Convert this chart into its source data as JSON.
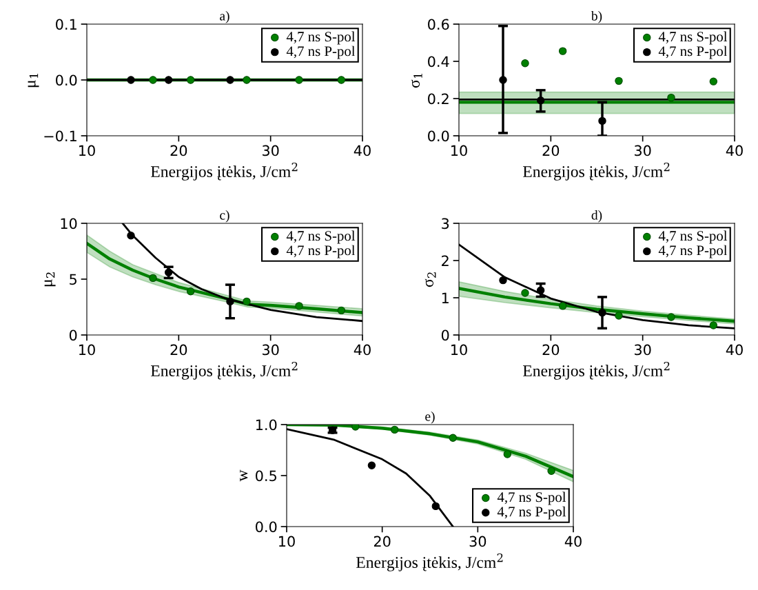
{
  "chart_data": [
    {
      "type": "scatter",
      "title": "a)",
      "xlabel": "Energijos įtėkis, J/cm$^{2}$",
      "ylabel": "μ$_{1}$",
      "xlim": [
        10,
        40
      ],
      "xticks": [
        10,
        20,
        30,
        40
      ],
      "ylim": [
        -0.1,
        0.1
      ],
      "yticks": [
        {
          "value": -0.1,
          "label": "−0.1"
        },
        {
          "value": 0,
          "label": "0.0"
        },
        {
          "value": 0.1,
          "label": "0.1"
        }
      ],
      "legend": "top right",
      "grid": false,
      "marker": "circle",
      "series": [
        {
          "type": "line",
          "marker": "none",
          "color": "#008000",
          "x": [
            10,
            40
          ],
          "values": [
            0,
            0
          ]
        },
        {
          "type": "line",
          "marker": "none",
          "color": "#000000",
          "x": [
            10,
            40
          ],
          "values": [
            0,
            0
          ]
        },
        {
          "name": "4,7 ns S-pol",
          "color": "#008000",
          "x": [
            17.2,
            21.3,
            27.4,
            33.1,
            37.7
          ],
          "values": [
            0,
            0,
            0,
            0,
            0
          ]
        },
        {
          "name": "4,7 ns P-pol",
          "color": "#000000",
          "x": [
            14.8,
            18.9,
            25.6
          ],
          "values": [
            0,
            0,
            0
          ]
        }
      ]
    },
    {
      "type": "scatter",
      "title": "b)",
      "xlabel": "Energijos įtėkis, J/cm$^{2}$",
      "ylabel": "σ$_{1}$",
      "xlim": [
        10,
        40
      ],
      "xticks": [
        10,
        20,
        30,
        40
      ],
      "ylim": [
        0,
        0.6
      ],
      "yticks": [
        {
          "value": 0,
          "label": "0.0"
        },
        {
          "value": 0.2,
          "label": "0.2"
        },
        {
          "value": 0.4,
          "label": "0.4"
        },
        {
          "value": 0.6,
          "label": "0.6"
        }
      ],
      "legend": "top right",
      "grid": false,
      "marker": "circle",
      "series": [
        {
          "type": "line",
          "marker": "none",
          "color": "#008000",
          "x": [
            10,
            40
          ],
          "values": [
            0.18,
            0.18
          ],
          "lower": [
            0.12,
            0.12
          ],
          "upper": [
            0.235,
            0.235
          ]
        },
        {
          "type": "line",
          "marker": "none",
          "color": "#000000",
          "x": [
            10,
            40
          ],
          "values": [
            0.195,
            0.195
          ]
        },
        {
          "name": "4,7 ns S-pol",
          "color": "#008000",
          "x": [
            17.2,
            21.3,
            27.4,
            33.1,
            37.7
          ],
          "values": [
            0.39,
            0.455,
            0.295,
            0.205,
            0.292
          ]
        },
        {
          "name": "4,7 ns P-pol",
          "color": "#000000",
          "x": [
            14.8,
            18.9,
            25.6
          ],
          "values": [
            0.3,
            0.19,
            0.08
          ],
          "errors": [
            [
              0.015,
              0.59
            ],
            [
              0.13,
              0.245
            ],
            [
              0.0,
              0.18
            ]
          ]
        }
      ]
    },
    {
      "type": "scatter",
      "title": "c)",
      "xlabel": "Energijos įtėkis, J/cm$^{2}$",
      "ylabel": "μ$_{2}$",
      "xlim": [
        10,
        40
      ],
      "xticks": [
        10,
        20,
        30,
        40
      ],
      "ylim": [
        0,
        10
      ],
      "yticks": [
        0,
        5,
        10
      ],
      "legend": "top right",
      "grid": false,
      "marker": "circle",
      "series": [
        {
          "type": "line",
          "marker": "none",
          "color": "#008000",
          "x": [
            10,
            12.5,
            15,
            17.5,
            20,
            25,
            27.5,
            30,
            35,
            40
          ],
          "values": [
            8.2,
            6.8,
            5.8,
            5.0,
            4.3,
            3.3,
            2.75,
            2.65,
            2.35,
            2.0
          ],
          "lower": [
            7.4,
            6.1,
            5.2,
            4.5,
            3.9,
            3.0,
            2.5,
            2.4,
            2.05,
            1.7
          ],
          "upper": [
            8.95,
            7.5,
            6.3,
            5.5,
            4.7,
            3.6,
            3.05,
            2.95,
            2.65,
            2.35
          ]
        },
        {
          "type": "line",
          "marker": "none",
          "color": "#000000",
          "x": [
            13.9,
            15,
            17.5,
            20,
            22.5,
            25,
            30,
            35,
            40
          ],
          "values": [
            10,
            8.9,
            6.9,
            5.2,
            4.1,
            3.3,
            2.25,
            1.6,
            1.25
          ]
        },
        {
          "name": "4,7 ns S-pol",
          "color": "#008000",
          "x": [
            17.2,
            21.3,
            27.4,
            33.1,
            37.7
          ],
          "values": [
            5.1,
            3.9,
            3.0,
            2.6,
            2.2
          ]
        },
        {
          "name": "4,7 ns P-pol",
          "color": "#000000",
          "x": [
            14.8,
            18.9,
            25.6
          ],
          "values": [
            8.9,
            5.6,
            3.0
          ],
          "errors": [
            null,
            [
              5.1,
              6.1
            ],
            [
              1.5,
              4.5
            ]
          ]
        }
      ]
    },
    {
      "type": "scatter",
      "title": "d)",
      "xlabel": "Energijos įtėkis, J/cm$^{2}$",
      "ylabel": "σ$_{2}$",
      "xlim": [
        10,
        40
      ],
      "xticks": [
        10,
        20,
        30,
        40
      ],
      "ylim": [
        0,
        3
      ],
      "yticks": [
        0,
        1,
        2,
        3
      ],
      "legend": "top right",
      "grid": false,
      "marker": "circle",
      "series": [
        {
          "type": "line",
          "marker": "none",
          "color": "#008000",
          "x": [
            10,
            15,
            20,
            25,
            30,
            35,
            40
          ],
          "values": [
            1.25,
            1.02,
            0.84,
            0.69,
            0.57,
            0.46,
            0.37
          ],
          "lower": [
            1.04,
            0.87,
            0.73,
            0.6,
            0.49,
            0.39,
            0.3
          ],
          "upper": [
            1.43,
            1.17,
            0.96,
            0.78,
            0.64,
            0.53,
            0.43
          ]
        },
        {
          "type": "line",
          "marker": "none",
          "color": "#000000",
          "x": [
            10,
            15,
            20,
            25,
            30,
            35,
            40
          ],
          "values": [
            2.43,
            1.55,
            0.98,
            0.62,
            0.4,
            0.26,
            0.18
          ]
        },
        {
          "name": "4,7 ns S-pol",
          "color": "#008000",
          "x": [
            17.2,
            21.3,
            27.4,
            33.1,
            37.7
          ],
          "values": [
            1.13,
            0.78,
            0.52,
            0.48,
            0.26
          ]
        },
        {
          "name": "4,7 ns P-pol",
          "color": "#000000",
          "x": [
            14.8,
            18.9,
            25.6
          ],
          "values": [
            1.47,
            1.2,
            0.6
          ],
          "errors": [
            null,
            [
              1.03,
              1.38
            ],
            [
              0.18,
              1.02
            ]
          ]
        }
      ]
    },
    {
      "type": "scatter",
      "title": "e)",
      "xlabel": "Energijos įtėkis, J/cm$^{2}$",
      "ylabel": "w",
      "xlim": [
        10,
        40
      ],
      "xticks": [
        10,
        20,
        30,
        40
      ],
      "ylim": [
        0,
        1
      ],
      "yticks": [
        {
          "value": 0,
          "label": "0.0"
        },
        {
          "value": 0.5,
          "label": "0.5"
        },
        {
          "value": 1,
          "label": "1.0"
        }
      ],
      "legend": "bottom right",
      "grid": false,
      "marker": "circle",
      "series": [
        {
          "type": "line",
          "marker": "none",
          "color": "#008000",
          "x": [
            10,
            15,
            20,
            25,
            30,
            35,
            40
          ],
          "values": [
            1.0,
            0.995,
            0.965,
            0.91,
            0.83,
            0.69,
            0.49
          ],
          "lower": [
            1.0,
            0.99,
            0.955,
            0.895,
            0.81,
            0.66,
            0.44
          ],
          "upper": [
            1.0,
            1.0,
            0.975,
            0.925,
            0.85,
            0.72,
            0.55
          ]
        },
        {
          "type": "line",
          "marker": "none",
          "color": "#000000",
          "x": [
            10,
            15,
            20,
            22.5,
            25,
            27.4
          ],
          "values": [
            0.955,
            0.85,
            0.66,
            0.52,
            0.3,
            0.0
          ]
        },
        {
          "name": "4,7 ns S-pol",
          "color": "#008000",
          "x": [
            17.2,
            21.3,
            27.4,
            33.1,
            37.7
          ],
          "values": [
            0.98,
            0.95,
            0.87,
            0.71,
            0.545
          ]
        },
        {
          "name": "4,7 ns P-pol",
          "color": "#000000",
          "x": [
            14.8,
            18.9,
            25.6
          ],
          "values": [
            0.945,
            0.6,
            0.2
          ],
          "errors": [
            [
              0.92,
              0.97
            ],
            null,
            null
          ]
        }
      ]
    }
  ]
}
